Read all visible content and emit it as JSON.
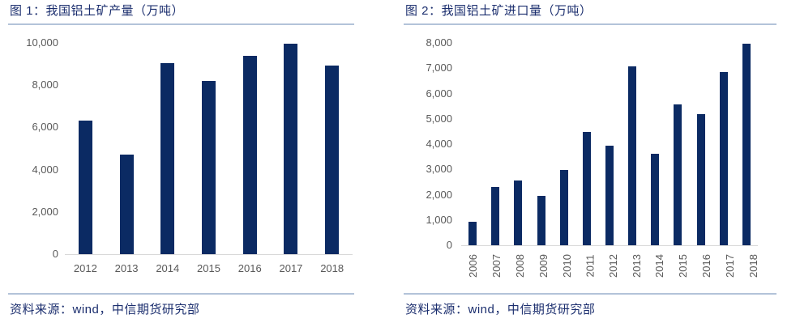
{
  "colors": {
    "bar": "#0b2a63",
    "title_text": "#1b2e6e",
    "divider": "#b3c3d9",
    "tick_label": "#595959",
    "axis_line": "#d9d9d9",
    "source_text": "#1b2e6e"
  },
  "chart_data": [
    {
      "type": "bar",
      "title": "图 1：我国铝土矿产量（万吨）",
      "categories": [
        "2012",
        "2013",
        "2014",
        "2015",
        "2016",
        "2017",
        "2018"
      ],
      "values": [
        6310,
        4710,
        9030,
        8200,
        9390,
        9960,
        8940
      ],
      "ylim": [
        0,
        10000
      ],
      "yticks": [
        "0",
        "2,000",
        "4,000",
        "6,000",
        "8,000",
        "10,000"
      ],
      "xlabel": "",
      "ylabel": "",
      "grid": false,
      "x_tick_rotation": 0,
      "source": "资料来源：wind，中信期货研究部"
    },
    {
      "type": "bar",
      "title": "图 2：我国铝土矿进口量（万吨）",
      "categories": [
        "2006",
        "2007",
        "2008",
        "2009",
        "2010",
        "2011",
        "2012",
        "2013",
        "2014",
        "2015",
        "2016",
        "2017",
        "2018"
      ],
      "values": [
        930,
        2300,
        2560,
        1950,
        2980,
        4480,
        3940,
        7070,
        3620,
        5570,
        5180,
        6850,
        7960
      ],
      "ylim": [
        0,
        8000
      ],
      "yticks": [
        "0",
        "1,000",
        "2,000",
        "3,000",
        "4,000",
        "5,000",
        "6,000",
        "7,000",
        "8,000"
      ],
      "xlabel": "",
      "ylabel": "",
      "grid": false,
      "x_tick_rotation": 90,
      "source": "资料来源：wind，中信期货研究部"
    }
  ]
}
